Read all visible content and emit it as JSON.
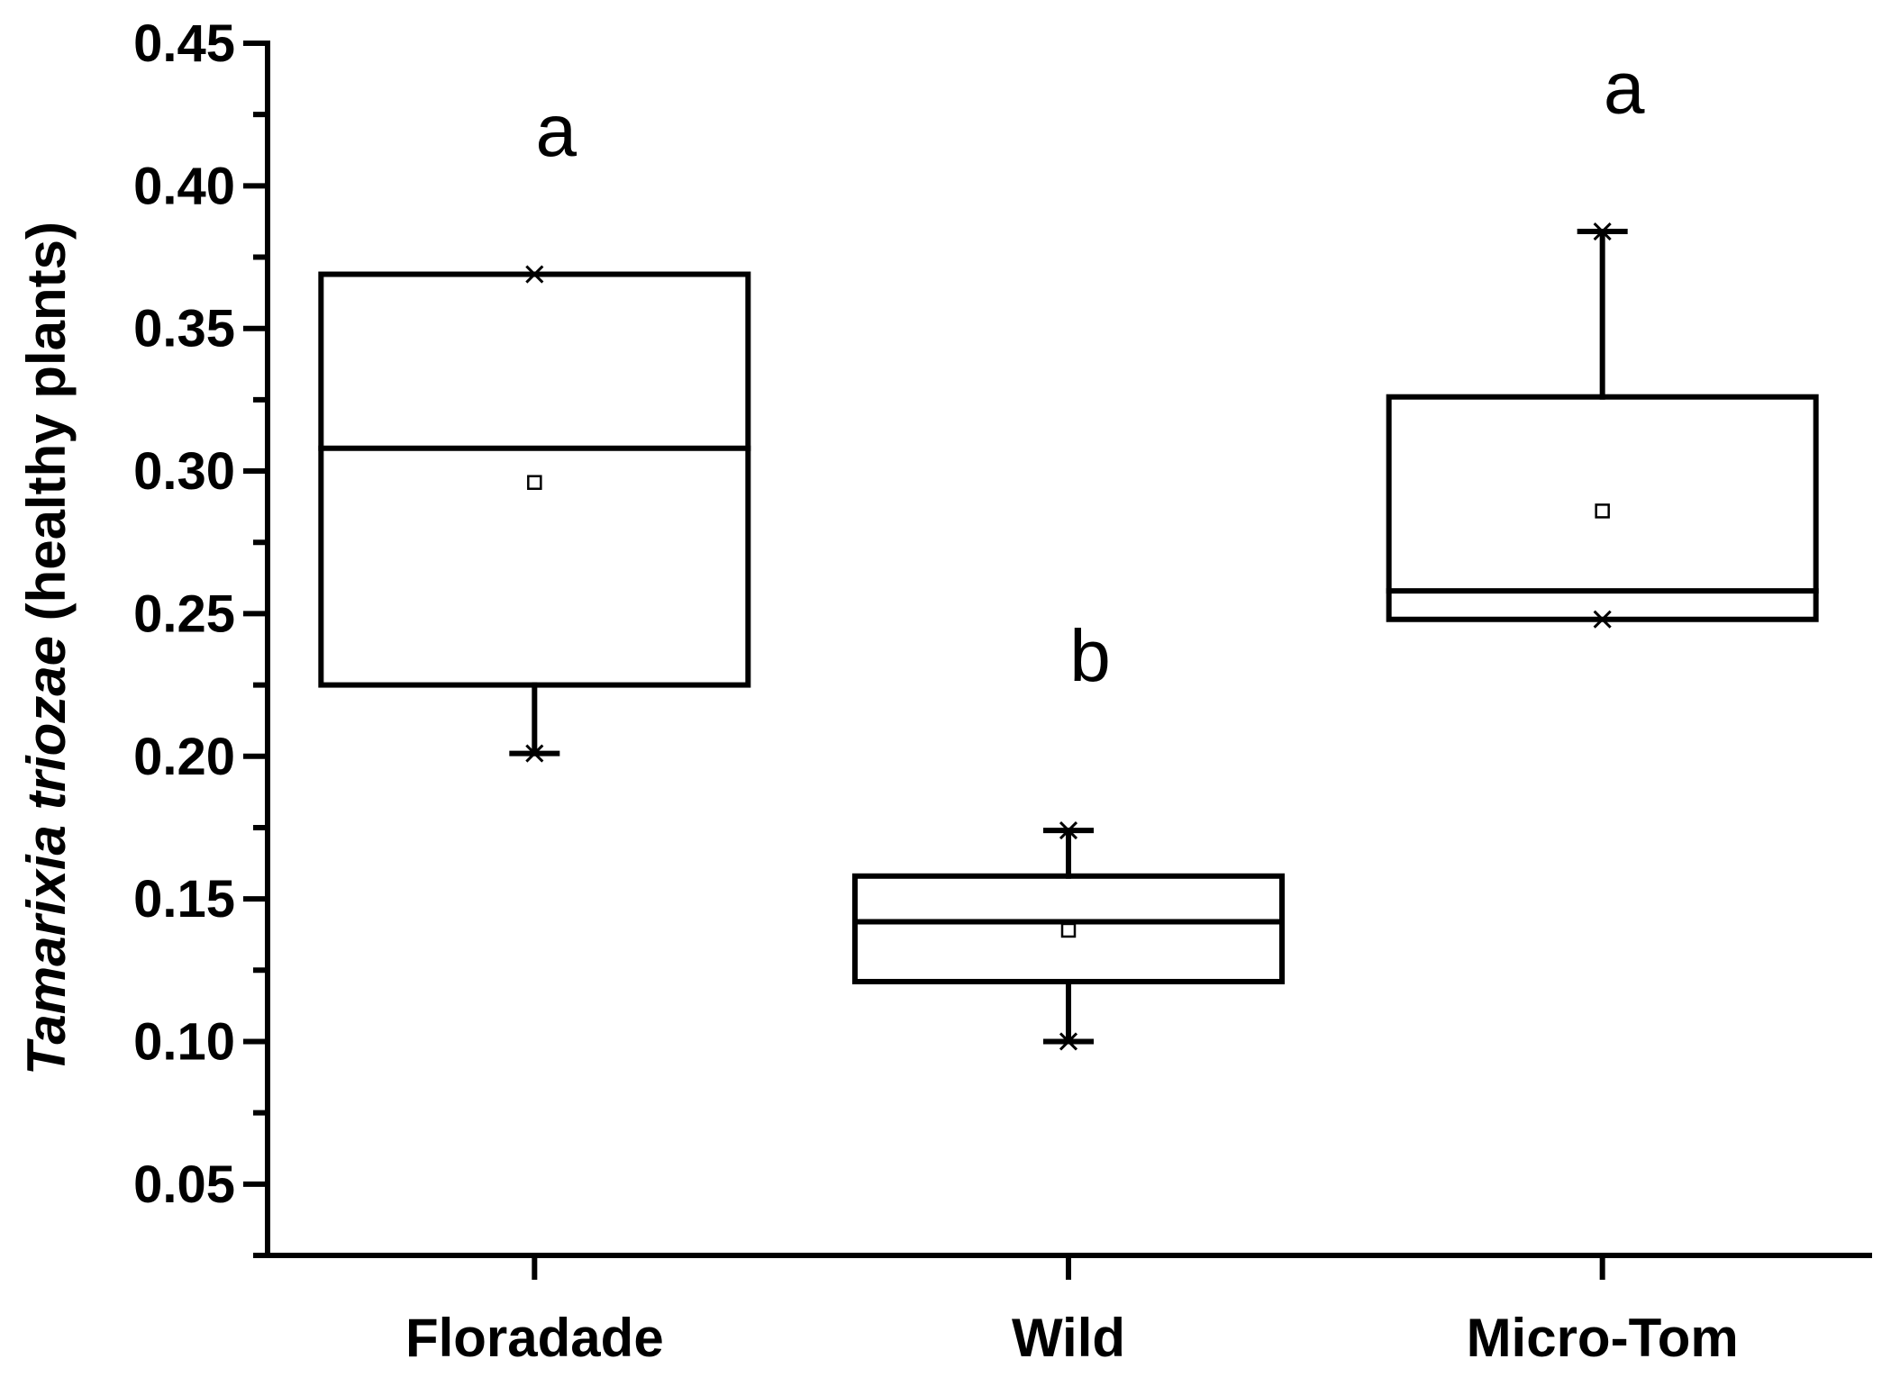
{
  "chart_data": {
    "type": "box",
    "ylabel_parts": [
      "Tamarixia triozae",
      " (healthy plants)"
    ],
    "ylim": [
      0.025,
      0.45
    ],
    "yticks": [
      0.05,
      0.1,
      0.15,
      0.2,
      0.25,
      0.3,
      0.35,
      0.4,
      0.45
    ],
    "ytick_labels": [
      "0.05",
      "0.10",
      "0.15",
      "0.20",
      "0.25",
      "0.30",
      "0.35",
      "0.40",
      "0.45"
    ],
    "categories": [
      "Floradade",
      "Wild",
      "Micro-Tom"
    ],
    "boxes": [
      {
        "category": "Floradade",
        "whisker_low": 0.201,
        "q1": 0.225,
        "median": 0.308,
        "q3": 0.369,
        "whisker_high": 0.369,
        "mean": 0.296,
        "min": 0.201,
        "max": 0.369,
        "letter": "a"
      },
      {
        "category": "Wild",
        "whisker_low": 0.1,
        "q1": 0.121,
        "median": 0.142,
        "q3": 0.158,
        "whisker_high": 0.174,
        "mean": 0.139,
        "min": 0.1,
        "max": 0.174,
        "letter": "b"
      },
      {
        "category": "Micro-Tom",
        "whisker_low": 0.248,
        "q1": 0.248,
        "median": 0.258,
        "q3": 0.326,
        "whisker_high": 0.384,
        "mean": 0.286,
        "min": 0.248,
        "max": 0.384,
        "letter": "a"
      }
    ],
    "letter_values": [
      0.42,
      0.236,
      0.435
    ],
    "grid": false,
    "legend": "none",
    "colors": {
      "line": "#000000",
      "background": "#ffffff"
    }
  }
}
